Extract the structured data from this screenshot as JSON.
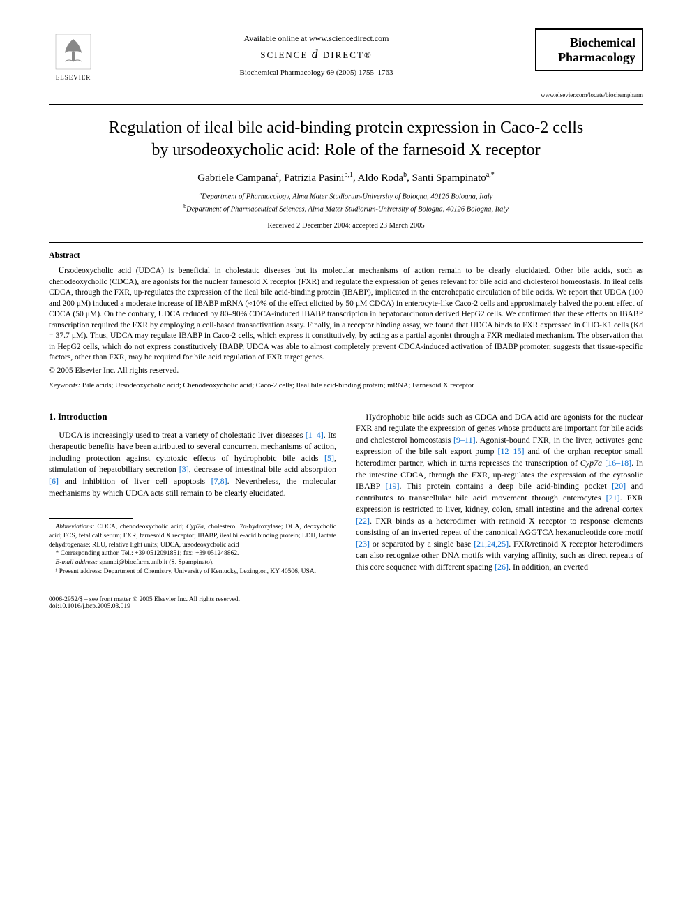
{
  "header": {
    "publisher": "ELSEVIER",
    "available_line": "Available online at www.sciencedirect.com",
    "sd_brand_left": "SCIENCE",
    "sd_brand_right": "DIRECT®",
    "journal_ref": "Biochemical Pharmacology 69 (2005) 1755–1763",
    "journal_name_l1": "Biochemical",
    "journal_name_l2": "Pharmacology",
    "journal_url": "www.elsevier.com/locate/biochempharm"
  },
  "title_l1": "Regulation of ileal bile acid-binding protein expression in Caco-2 cells",
  "title_l2": "by ursodeoxycholic acid: Role of the farnesoid X receptor",
  "authors_html": "Gabriele Campana<sup>a</sup>, Patrizia Pasini<sup>b,1</sup>, Aldo Roda<sup>b</sup>, Santi Spampinato<sup>a,*</sup>",
  "affil_a": "Department of Pharmacology, Alma Mater Studiorum-University of Bologna, 40126 Bologna, Italy",
  "affil_b": "Department of Pharmaceutical Sciences, Alma Mater Studiorum-University of Bologna, 40126 Bologna, Italy",
  "dates": "Received 2 December 2004; accepted 23 March 2005",
  "abstract_head": "Abstract",
  "abstract_body": "Ursodeoxycholic acid (UDCA) is beneficial in cholestatic diseases but its molecular mechanisms of action remain to be clearly elucidated. Other bile acids, such as chenodeoxycholic (CDCA), are agonists for the nuclear farnesoid X receptor (FXR) and regulate the expression of genes relevant for bile acid and cholesterol homeostasis. In ileal cells CDCA, through the FXR, up-regulates the expression of the ileal bile acid-binding protein (IBABP), implicated in the enterohepatic circulation of bile acids. We report that UDCA (100 and 200 μM) induced a moderate increase of IBABP mRNA (≈10% of the effect elicited by 50 μM CDCA) in enterocyte-like Caco-2 cells and approximately halved the potent effect of CDCA (50 μM). On the contrary, UDCA reduced by 80–90% CDCA-induced IBABP transcription in hepatocarcinoma derived HepG2 cells. We confirmed that these effects on IBABP transcription required the FXR by employing a cell-based transactivation assay. Finally, in a receptor binding assay, we found that UDCA binds to FXR expressed in CHO-K1 cells (Kd = 37.7 μM). Thus, UDCA may regulate IBABP in Caco-2 cells, which express it constitutively, by acting as a partial agonist through a FXR mediated mechanism. The observation that in HepG2 cells, which do not express constitutively IBABP, UDCA was able to almost completely prevent CDCA-induced activation of IBABP promoter, suggests that tissue-specific factors, other than FXR, may be required for bile acid regulation of FXR target genes.",
  "copyright": "© 2005 Elsevier Inc. All rights reserved.",
  "keywords_label": "Keywords:",
  "keywords": "Bile acids; Ursodeoxycholic acid; Chenodeoxycholic acid; Caco-2 cells; Ileal bile acid-binding protein; mRNA; Farnesoid X receptor",
  "section1_head": "1. Introduction",
  "col_left_p1_a": "UDCA is increasingly used to treat a variety of cholestatic liver diseases ",
  "col_left_p1_refs1": "[1–4]",
  "col_left_p1_b": ". Its therapeutic benefits have been attributed to several concurrent mechanisms of action, including protection against cytotoxic effects of hydrophobic bile acids ",
  "col_left_p1_refs2": "[5]",
  "col_left_p1_c": ", stimulation of hepatobiliary secretion ",
  "col_left_p1_refs3": "[3]",
  "col_left_p1_d": ", decrease of intestinal bile acid absorption ",
  "col_left_p1_refs4": "[6]",
  "col_left_p1_e": " and inhibition of liver cell apoptosis ",
  "col_left_p1_refs5": "[7,8]",
  "col_left_p1_f": ". Nevertheless, the molecular mechanisms by which UDCA acts still remain to be clearly elucidated.",
  "col_right_p1_a": "Hydrophobic bile acids such as CDCA and DCA acid are agonists for the nuclear FXR and regulate the expression of genes whose products are important for bile acids and cholesterol homeostasis ",
  "col_right_p1_r1": "[9–11]",
  "col_right_p1_b": ". Agonist-bound FXR, in the liver, activates gene expression of the bile salt export pump ",
  "col_right_p1_r2": "[12–15]",
  "col_right_p1_c": " and of the orphan receptor small heterodimer partner, which in turns represses the transcription of ",
  "col_right_cyp": "Cyp7a",
  "col_right_p1_d": " ",
  "col_right_p1_r3": "[16–18]",
  "col_right_p1_e": ". In the intestine CDCA, through the FXR, up-regulates the expression of the cytosolic IBABP ",
  "col_right_p1_r4": "[19]",
  "col_right_p1_f": ". This protein contains a deep bile acid-binding pocket ",
  "col_right_p1_r5": "[20]",
  "col_right_p1_g": " and contributes to transcellular bile acid movement through enterocytes ",
  "col_right_p1_r6": "[21]",
  "col_right_p1_h": ". FXR expression is restricted to liver, kidney, colon, small intestine and the adrenal cortex ",
  "col_right_p1_r7": "[22]",
  "col_right_p1_i": ". FXR binds as a heterodimer with retinoid X receptor to response elements consisting of an inverted repeat of the canonical AGGTCA hexanucleotide core motif ",
  "col_right_p1_r8": "[23]",
  "col_right_p1_j": " or separated by a single base ",
  "col_right_p1_r9": "[21,24,25]",
  "col_right_p1_k": ". FXR/retinoid X receptor heterodimers can also recognize other DNA motifs with varying affinity, such as direct repeats of this core sequence with different spacing ",
  "col_right_p1_r10": "[26]",
  "col_right_p1_l": ". In addition, an everted",
  "footnotes": {
    "abbrev_label": "Abbreviations:",
    "abbrev": "CDCA, chenodeoxycholic acid; Cyp7a, cholesterol 7α-hydroxylase; DCA, deoxycholic acid; FCS, fetal calf serum; FXR, farnesoid X receptor; IBABP, ileal bile-acid binding protein; LDH, lactate dehydrogenase; RLU, relative light units; UDCA, ursodeoxycholic acid",
    "corr": "* Corresponding author. Tel.: +39 0512091851; fax: +39 051248862.",
    "email_label": "E-mail address:",
    "email": "spampi@biocfarm.unib.it (S. Spampinato).",
    "note1": "¹ Present address: Department of Chemistry, University of Kentucky, Lexington, KY 40506, USA."
  },
  "footer": {
    "left_l1": "0006-2952/$ – see front matter © 2005 Elsevier Inc. All rights reserved.",
    "left_l2": "doi:10.1016/j.bcp.2005.03.019"
  },
  "colors": {
    "link": "#0066cc",
    "text": "#000000",
    "bg": "#ffffff"
  }
}
